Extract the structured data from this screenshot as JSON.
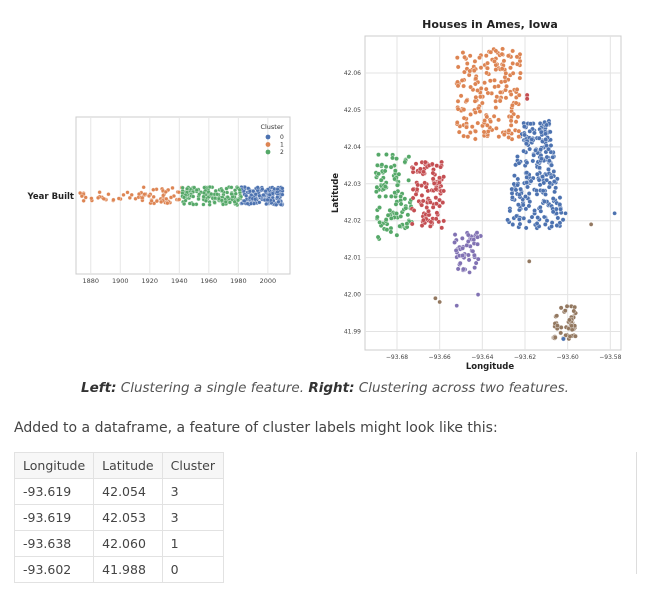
{
  "caption": {
    "left_label": "Left:",
    "left_text": " Clustering a single feature. ",
    "right_label": "Right:",
    "right_text": " Clustering across two features."
  },
  "paragraph": "Added to a dataframe, a feature of cluster labels might look like this:",
  "table": {
    "headers": [
      "Longitude",
      "Latitude",
      "Cluster"
    ],
    "rows": [
      [
        "-93.619",
        "42.054",
        "3"
      ],
      [
        "-93.619",
        "42.053",
        "3"
      ],
      [
        "-93.638",
        "42.060",
        "1"
      ],
      [
        "-93.602",
        "41.988",
        "0"
      ]
    ]
  },
  "colors": {
    "c0": "#4c72b0",
    "c1": "#dd8452",
    "c2": "#55a868",
    "c3": "#c44e52",
    "c4": "#8172b3",
    "c5": "#937860"
  },
  "chart_data": [
    {
      "type": "scatter",
      "title": "",
      "ylabel": "Year Built",
      "xticks": [
        "1880",
        "1900",
        "1920",
        "1940",
        "1960",
        "1980",
        "2000"
      ],
      "xlim": [
        1870,
        2015
      ],
      "grid": true,
      "legend": {
        "title": "Cluster",
        "entries": [
          "0",
          "1",
          "2"
        ],
        "placement": "top-right"
      },
      "series": [
        {
          "name": "0",
          "x_range": [
            1982,
            2010
          ]
        },
        {
          "name": "1",
          "x_range": [
            1872,
            1942
          ]
        },
        {
          "name": "2",
          "x_range": [
            1942,
            1982
          ]
        }
      ]
    },
    {
      "type": "scatter",
      "title": "Houses in Ames, Iowa",
      "xlabel": "Longitude",
      "ylabel": "Latitude",
      "xlim": [
        -93.695,
        -93.575
      ],
      "ylim": [
        41.985,
        42.07
      ],
      "xticks": [
        "-93.68",
        "-93.66",
        "-93.64",
        "-93.62",
        "-93.60",
        "-93.58"
      ],
      "yticks": [
        "41.99",
        "42.00",
        "42.01",
        "42.02",
        "42.03",
        "42.04",
        "42.05",
        "42.06"
      ],
      "grid": true,
      "clusters": [
        {
          "cluster": 0,
          "lon_range": [
            -93.631,
            -93.603
          ],
          "lat_range": [
            42.018,
            42.047
          ]
        },
        {
          "cluster": 1,
          "lon_range": [
            -93.652,
            -93.622
          ],
          "lat_range": [
            42.042,
            42.067
          ]
        },
        {
          "cluster": 2,
          "lon_range": [
            -93.69,
            -93.673
          ],
          "lat_range": [
            42.015,
            42.038
          ]
        },
        {
          "cluster": 3,
          "lon_range": [
            -93.673,
            -93.658
          ],
          "lat_range": [
            42.018,
            42.036
          ]
        },
        {
          "cluster": 4,
          "lon_range": [
            -93.653,
            -93.64
          ],
          "lat_range": [
            42.006,
            42.017
          ]
        },
        {
          "cluster": 5,
          "lon_range": [
            -93.607,
            -93.596
          ],
          "lat_range": [
            41.988,
            41.997
          ]
        }
      ],
      "table_points": [
        {
          "lon": -93.619,
          "lat": 42.054,
          "cluster": 3
        },
        {
          "lon": -93.619,
          "lat": 42.053,
          "cluster": 3
        },
        {
          "lon": -93.638,
          "lat": 42.06,
          "cluster": 1
        },
        {
          "lon": -93.602,
          "lat": 41.988,
          "cluster": 0
        }
      ]
    }
  ]
}
